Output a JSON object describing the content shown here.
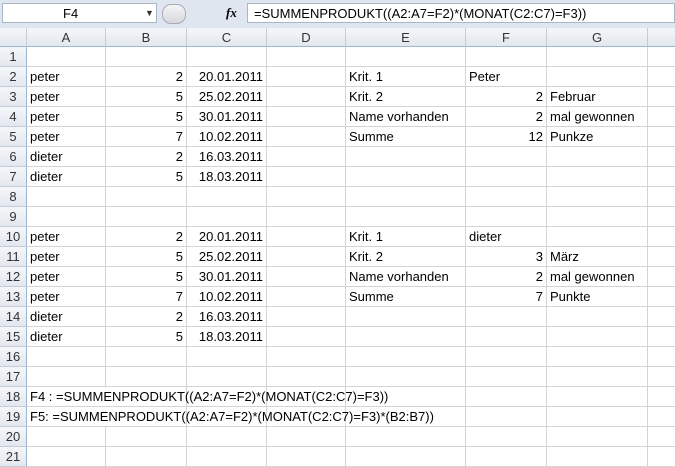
{
  "formula_bar": {
    "name_box": "F4",
    "formula": "=SUMMENPRODUKT((A2:A7=F2)*(MONAT(C2:C7)=F3))",
    "fx_label": "fx"
  },
  "columns": [
    "A",
    "B",
    "C",
    "D",
    "E",
    "F",
    "G"
  ],
  "rows": [
    {
      "n": "1",
      "cells": {}
    },
    {
      "n": "2",
      "cells": {
        "A": "peter",
        "B": "2",
        "C": "20.01.2011",
        "E": "Krit. 1",
        "F": "Peter"
      }
    },
    {
      "n": "3",
      "cells": {
        "A": "peter",
        "B": "5",
        "C": "25.02.2011",
        "E": "Krit. 2",
        "F": "2",
        "G": "Februar"
      }
    },
    {
      "n": "4",
      "cells": {
        "A": "peter",
        "B": "5",
        "C": "30.01.2011",
        "E": "Name vorhanden",
        "F": "2",
        "G": "mal gewonnen"
      }
    },
    {
      "n": "5",
      "cells": {
        "A": "peter",
        "B": "7",
        "C": "10.02.2011",
        "E": "Summe",
        "F": "12",
        "G": "Punkze"
      }
    },
    {
      "n": "6",
      "cells": {
        "A": "dieter",
        "B": "2",
        "C": "16.03.2011"
      }
    },
    {
      "n": "7",
      "cells": {
        "A": "dieter",
        "B": "5",
        "C": "18.03.2011"
      }
    },
    {
      "n": "8",
      "cells": {}
    },
    {
      "n": "9",
      "cells": {}
    },
    {
      "n": "10",
      "cells": {
        "A": "peter",
        "B": "2",
        "C": "20.01.2011",
        "E": "Krit. 1",
        "F": "dieter"
      }
    },
    {
      "n": "11",
      "cells": {
        "A": "peter",
        "B": "5",
        "C": "25.02.2011",
        "E": "Krit. 2",
        "F": "3",
        "G": "März"
      }
    },
    {
      "n": "12",
      "cells": {
        "A": "peter",
        "B": "5",
        "C": "30.01.2011",
        "E": "Name vorhanden",
        "F": "2",
        "G": "mal gewonnen"
      }
    },
    {
      "n": "13",
      "cells": {
        "A": "peter",
        "B": "7",
        "C": "10.02.2011",
        "E": "Summe",
        "F": "7",
        "G": "Punkte"
      }
    },
    {
      "n": "14",
      "cells": {
        "A": "dieter",
        "B": "2",
        "C": "16.03.2011"
      }
    },
    {
      "n": "15",
      "cells": {
        "A": "dieter",
        "B": "5",
        "C": "18.03.2011"
      }
    },
    {
      "n": "16",
      "cells": {}
    },
    {
      "n": "17",
      "cells": {}
    },
    {
      "n": "18",
      "cells": {
        "A": "F4 :   =SUMMENPRODUKT((A2:A7=F2)*(MONAT(C2:C7)=F3))"
      }
    },
    {
      "n": "19",
      "cells": {
        "A": "F5:    =SUMMENPRODUKT((A2:A7=F2)*(MONAT(C2:C7)=F3)*(B2:B7))"
      }
    },
    {
      "n": "20",
      "cells": {}
    },
    {
      "n": "21",
      "cells": {}
    }
  ]
}
